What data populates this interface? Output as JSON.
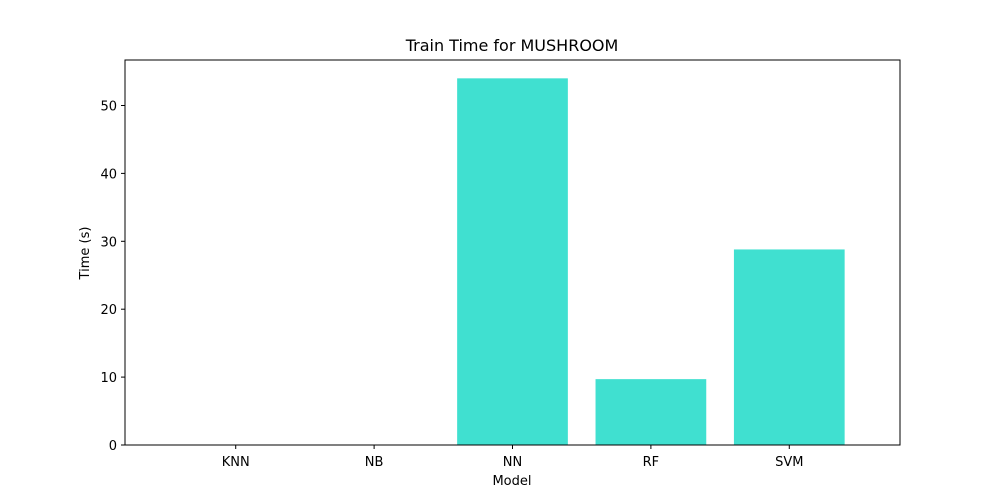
{
  "chart_data": {
    "type": "bar",
    "title": "Train Time for MUSHROOM",
    "xlabel": "Model",
    "ylabel": "Time (s)",
    "categories": [
      "KNN",
      "NB",
      "NN",
      "RF",
      "SVM"
    ],
    "values": [
      0.05,
      0.05,
      54.0,
      9.7,
      28.8
    ],
    "ylim": [
      0,
      56.7
    ],
    "yticks": [
      0,
      10,
      20,
      30,
      40,
      50
    ],
    "grid": false,
    "bar_color": "#40e0d0"
  }
}
